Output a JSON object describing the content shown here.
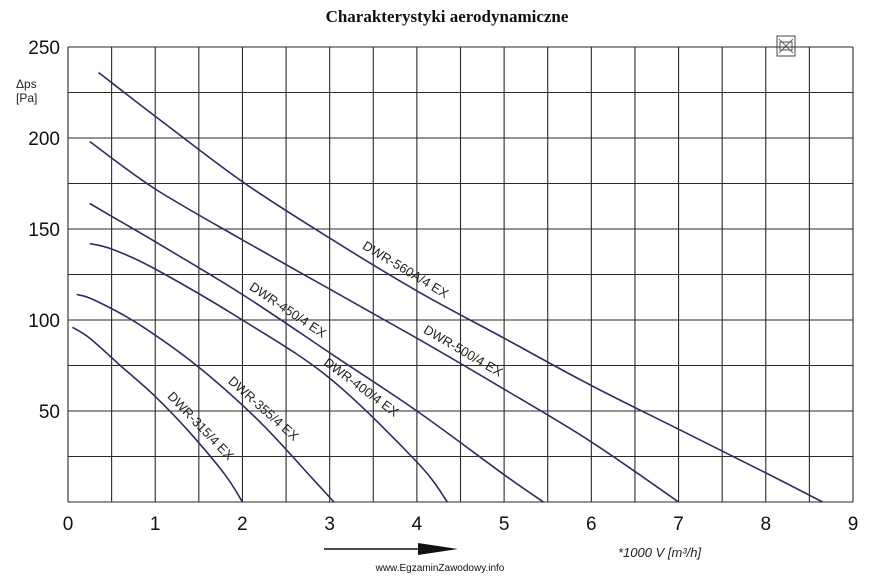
{
  "chart_data": {
    "type": "line",
    "title": "Charakterystyki aerodynamiczne",
    "ylabel": [
      "Δps",
      "[Pa]"
    ],
    "xlabel": "*1000 V [m³/h]",
    "xlim": [
      0,
      9
    ],
    "ylim": [
      0,
      250
    ],
    "x_ticks": [
      "0",
      "1",
      "2",
      "3",
      "4",
      "5",
      "6",
      "7",
      "8",
      "9"
    ],
    "y_ticks": [
      "50",
      "100",
      "150",
      "200",
      "250"
    ],
    "grid": true,
    "series": [
      {
        "name": "DWR-315/4 EX",
        "color": "#2b2b6e",
        "points": [
          [
            0.05,
            96
          ],
          [
            0.25,
            90
          ],
          [
            0.6,
            75
          ],
          [
            1.0,
            58
          ],
          [
            1.4,
            38
          ],
          [
            1.8,
            15
          ],
          [
            2.0,
            0
          ]
        ]
      },
      {
        "name": "DWR-355/4 EX",
        "color": "#2b2b6e",
        "points": [
          [
            0.1,
            114
          ],
          [
            0.3,
            111
          ],
          [
            0.8,
            98
          ],
          [
            1.5,
            74
          ],
          [
            2.2,
            44
          ],
          [
            2.8,
            13
          ],
          [
            3.05,
            0
          ]
        ]
      },
      {
        "name": "DWR-400/4 EX",
        "color": "#2b2b6e",
        "points": [
          [
            0.25,
            142
          ],
          [
            0.5,
            139
          ],
          [
            1.0,
            128
          ],
          [
            2.0,
            100
          ],
          [
            3.0,
            68
          ],
          [
            4.0,
            22
          ],
          [
            4.35,
            0
          ]
        ]
      },
      {
        "name": "DWR-450/4 EX",
        "color": "#2b2b6e",
        "points": [
          [
            0.25,
            164
          ],
          [
            0.5,
            157
          ],
          [
            1.0,
            143
          ],
          [
            2.0,
            114
          ],
          [
            3.0,
            82
          ],
          [
            4.0,
            50
          ],
          [
            5.0,
            15
          ],
          [
            5.45,
            0
          ]
        ]
      },
      {
        "name": "DWR-500/4 EX",
        "color": "#2b2b6e",
        "points": [
          [
            0.25,
            198
          ],
          [
            1.0,
            172
          ],
          [
            2.0,
            144
          ],
          [
            3.0,
            117
          ],
          [
            4.0,
            90
          ],
          [
            5.0,
            62
          ],
          [
            6.0,
            33
          ],
          [
            7.0,
            0
          ]
        ]
      },
      {
        "name": "DWR-560A/4 EX",
        "color": "#2b2b6e",
        "points": [
          [
            0.35,
            236
          ],
          [
            1.0,
            212
          ],
          [
            2.0,
            176
          ],
          [
            3.0,
            145
          ],
          [
            4.0,
            116
          ],
          [
            5.0,
            90
          ],
          [
            6.0,
            64
          ],
          [
            7.0,
            40
          ],
          [
            8.0,
            16
          ],
          [
            8.65,
            0
          ]
        ]
      }
    ]
  },
  "watermark": "www.EgzaminZawodowy.info"
}
